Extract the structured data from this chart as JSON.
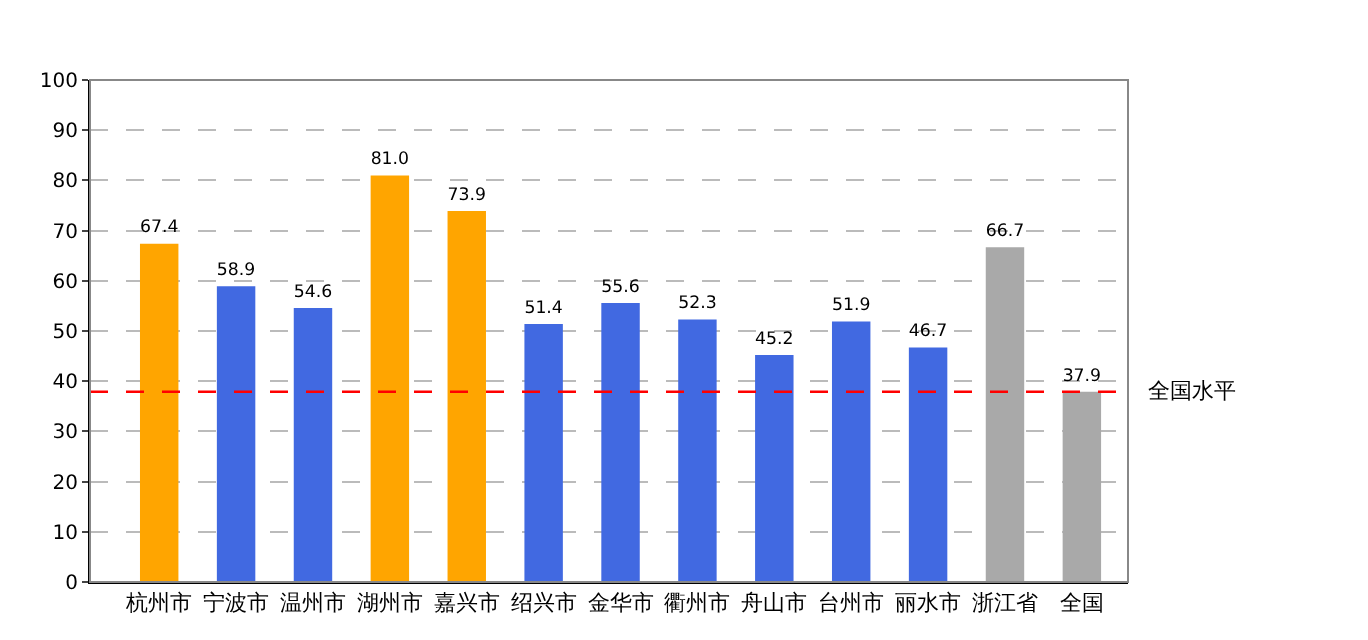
{
  "chart_data": {
    "type": "bar",
    "categories": [
      "杭州市",
      "宁波市",
      "温州市",
      "湖州市",
      "嘉兴市",
      "绍兴市",
      "金华市",
      "衢州市",
      "舟山市",
      "台州市",
      "丽水市",
      "浙江省",
      "全国"
    ],
    "values": [
      67.4,
      58.9,
      54.6,
      81.0,
      73.9,
      51.4,
      55.6,
      52.3,
      45.2,
      51.9,
      46.7,
      66.7,
      37.9
    ],
    "colors": [
      "#ffa500",
      "#4169e1",
      "#4169e1",
      "#ffa500",
      "#ffa500",
      "#4169e1",
      "#4169e1",
      "#4169e1",
      "#4169e1",
      "#4169e1",
      "#4169e1",
      "#a9a9a9",
      "#a9a9a9"
    ],
    "value_labels": [
      "67.4",
      "58.9",
      "54.6",
      "81.0",
      "73.9",
      "51.4",
      "55.6",
      "52.3",
      "45.2",
      "51.9",
      "46.7",
      "66.7",
      "37.9"
    ],
    "ylim": [
      0,
      100
    ],
    "yticks": [
      0,
      10,
      20,
      30,
      40,
      50,
      60,
      70,
      80,
      90,
      100
    ],
    "grid": "y",
    "ref_lines": [
      {
        "axis": "y",
        "value": 37.9,
        "label": "全国水平",
        "color": "#ff0000",
        "line_style": "dashed"
      }
    ]
  }
}
